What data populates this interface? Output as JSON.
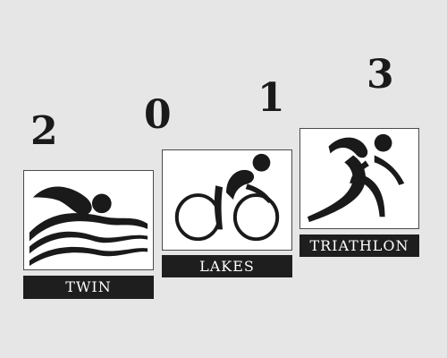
{
  "year_digits": [
    "2",
    "0",
    "1",
    "3"
  ],
  "labels": {
    "first": "TWIN",
    "second": "LAKES",
    "third": "TRIATHLON"
  },
  "icons": [
    "swimmer-icon",
    "cyclist-icon",
    "runner-icon"
  ],
  "colors": {
    "background": "#e6e6e6",
    "ink": "#1a1a1a",
    "label_bg": "#1e1e1e",
    "label_text": "#ffffff",
    "panel_bg": "#ffffff"
  }
}
